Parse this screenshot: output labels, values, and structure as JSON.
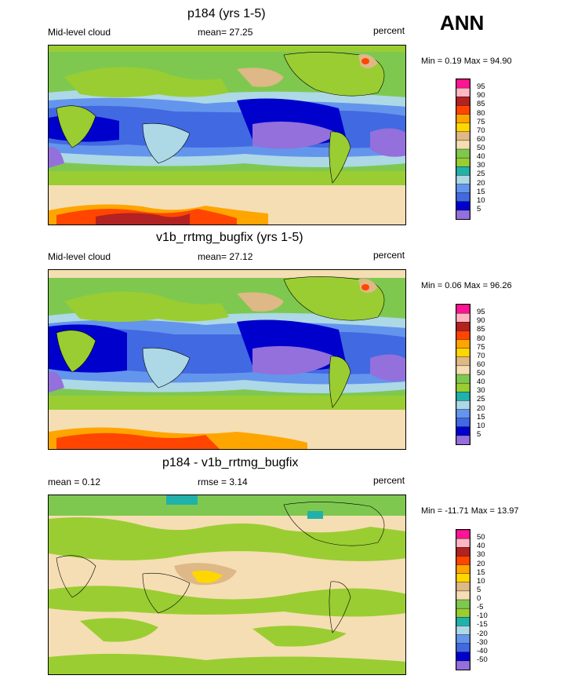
{
  "header": {
    "season": "ANN"
  },
  "palettes": {
    "abs": [
      "#9370db",
      "#0000cd",
      "#4169e1",
      "#6495ed",
      "#add8e6",
      "#20b2aa",
      "#9acd32",
      "#7ec850",
      "#f5deb3",
      "#deb887",
      "#ffd700",
      "#ffa500",
      "#ff4500",
      "#b22222",
      "#ffb6c1",
      "#ff1493"
    ],
    "diff": [
      "#9370db",
      "#0000cd",
      "#4169e1",
      "#6495ed",
      "#add8e6",
      "#20b2aa",
      "#9acd32",
      "#7ec850",
      "#f5deb3",
      "#deb887",
      "#ffd700",
      "#ffa500",
      "#ff4500",
      "#b22222",
      "#ffb6c1",
      "#ff1493"
    ]
  },
  "panels": [
    {
      "title": "p184 (yrs 1-5)",
      "variable": "Mid-level cloud",
      "stat": "mean=  27.25",
      "units": "percent",
      "minmax": "Min =   0.19 Max =   94.90",
      "colorbar_labels": [
        "95",
        "90",
        "85",
        "80",
        "75",
        "70",
        "60",
        "50",
        "40",
        "30",
        "25",
        "20",
        "15",
        "10",
        "5"
      ]
    },
    {
      "title": "v1b_rrtmg_bugfix (yrs 1-5)",
      "variable": "Mid-level cloud",
      "stat": "mean=  27.12",
      "units": "percent",
      "minmax": "Min =   0.06 Max =   96.26",
      "colorbar_labels": [
        "95",
        "90",
        "85",
        "80",
        "75",
        "70",
        "60",
        "50",
        "40",
        "30",
        "25",
        "20",
        "15",
        "10",
        "5"
      ]
    },
    {
      "title": "p184 - v1b_rrtmg_bugfix",
      "variable": "mean =   0.12",
      "stat": "rmse =   3.14",
      "units": "percent",
      "minmax": "Min = -11.71 Max =   13.97",
      "colorbar_labels": [
        "50",
        "40",
        "30",
        "20",
        "15",
        "10",
        "5",
        "0",
        "-5",
        "-10",
        "-15",
        "-20",
        "-30",
        "-40",
        "-50"
      ]
    }
  ]
}
